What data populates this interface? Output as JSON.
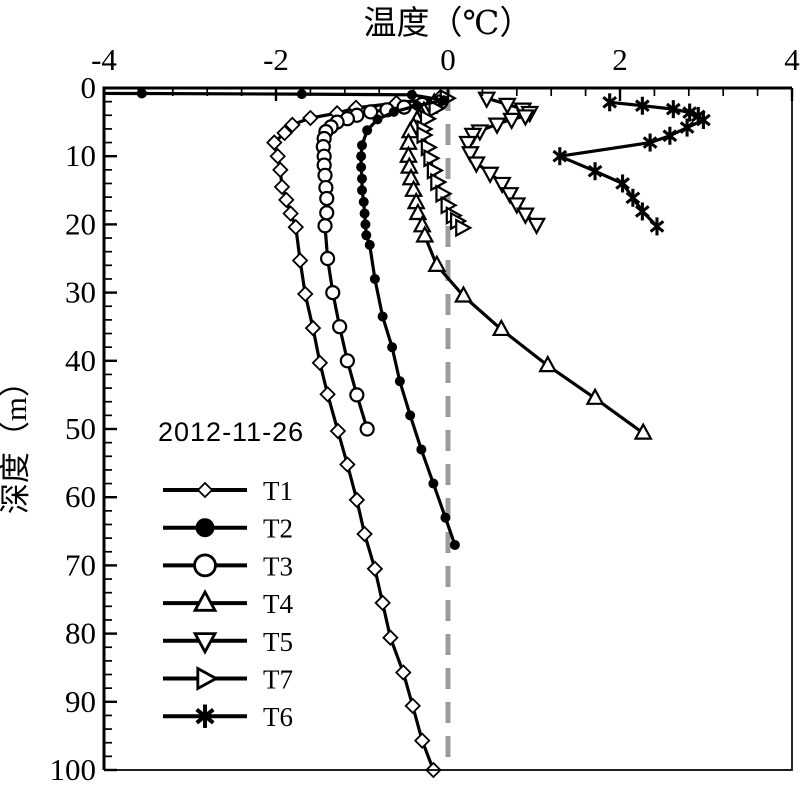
{
  "colors": {
    "line": "#000000",
    "marker_fill": "#ffffff",
    "zero_line": "#9c9c9c",
    "background": "#ffffff",
    "text": "#000000"
  },
  "chart_data": {
    "type": "line",
    "title": "温度（℃）",
    "xlabel": "温度（℃）",
    "ylabel": "深度（m）",
    "annotation": "2012-11-26",
    "x_axis": {
      "min": -4,
      "max": 4,
      "major_ticks": [
        -4,
        -2,
        0,
        2,
        4
      ],
      "minor_step": 0.4,
      "position": "top"
    },
    "y_axis": {
      "min": 0,
      "max": 100,
      "major_ticks": [
        0,
        10,
        20,
        30,
        40,
        50,
        60,
        70,
        80,
        90,
        100
      ],
      "minor_step": 2,
      "inverted": true,
      "position": "left"
    },
    "zero_reference_line": {
      "x": 0,
      "style": "dashed",
      "color": "#9c9c9c"
    },
    "grid": false,
    "legend_position": "inside-lower-left",
    "series": [
      {
        "name": "T1",
        "marker": "open-diamond",
        "points": [
          [
            -0.1,
            1.5
          ],
          [
            -0.6,
            2.2
          ],
          [
            -1.07,
            2.9
          ],
          [
            -1.29,
            3.7
          ],
          [
            -1.6,
            4.4
          ],
          [
            -1.81,
            5.4
          ],
          [
            -1.9,
            6.6
          ],
          [
            -2.02,
            8.0
          ],
          [
            -1.98,
            10.0
          ],
          [
            -1.95,
            12.0
          ],
          [
            -1.93,
            14.5
          ],
          [
            -1.88,
            16.4
          ],
          [
            -1.83,
            18.4
          ],
          [
            -1.77,
            20.4
          ],
          [
            -1.72,
            25.3
          ],
          [
            -1.66,
            30.2
          ],
          [
            -1.57,
            35.2
          ],
          [
            -1.49,
            40.3
          ],
          [
            -1.4,
            44.9
          ],
          [
            -1.28,
            50.3
          ],
          [
            -1.17,
            55.2
          ],
          [
            -1.06,
            60.4
          ],
          [
            -0.97,
            65.4
          ],
          [
            -0.85,
            70.5
          ],
          [
            -0.76,
            75.5
          ],
          [
            -0.67,
            80.6
          ],
          [
            -0.52,
            85.7
          ],
          [
            -0.41,
            90.6
          ],
          [
            -0.3,
            95.7
          ],
          [
            -0.17,
            100.0
          ]
        ]
      },
      {
        "name": "T2",
        "marker": "filled-circle",
        "lead_in": [
          -4.0,
          0.8
        ],
        "points": [
          [
            -3.56,
            0.8
          ],
          [
            -1.7,
            0.9
          ],
          [
            -0.42,
            1.0
          ],
          [
            -0.05,
            1.8
          ],
          [
            -0.36,
            2.6
          ],
          [
            -0.63,
            3.5
          ],
          [
            -0.82,
            4.6
          ],
          [
            -0.94,
            6.2
          ],
          [
            -1.0,
            8.4
          ],
          [
            -1.01,
            10.0
          ],
          [
            -1.01,
            11.6
          ],
          [
            -1.0,
            13.3
          ],
          [
            -1.0,
            15.0
          ],
          [
            -0.98,
            16.7
          ],
          [
            -0.97,
            18.4
          ],
          [
            -0.96,
            20.0
          ],
          [
            -0.95,
            21.6
          ],
          [
            -0.91,
            23.0
          ],
          [
            -0.85,
            28.0
          ],
          [
            -0.76,
            33.5
          ],
          [
            -0.65,
            38.0
          ],
          [
            -0.56,
            43.0
          ],
          [
            -0.44,
            48.0
          ],
          [
            -0.31,
            53.0
          ],
          [
            -0.17,
            58.0
          ],
          [
            -0.03,
            63.0
          ],
          [
            0.08,
            67.0
          ]
        ]
      },
      {
        "name": "T3",
        "marker": "open-circle",
        "points": [
          [
            -0.08,
            2.0
          ],
          [
            -0.3,
            2.4
          ],
          [
            -0.51,
            2.8
          ],
          [
            -0.71,
            3.2
          ],
          [
            -0.9,
            3.5
          ],
          [
            -1.06,
            4.0
          ],
          [
            -1.17,
            4.5
          ],
          [
            -1.29,
            5.0
          ],
          [
            -1.36,
            5.7
          ],
          [
            -1.42,
            6.4
          ],
          [
            -1.44,
            7.4
          ],
          [
            -1.45,
            8.6
          ],
          [
            -1.44,
            10.0
          ],
          [
            -1.44,
            11.3
          ],
          [
            -1.43,
            12.8
          ],
          [
            -1.42,
            14.6
          ],
          [
            -1.41,
            16.2
          ],
          [
            -1.41,
            18.3
          ],
          [
            -1.43,
            20.2
          ],
          [
            -1.4,
            25.0
          ],
          [
            -1.34,
            30.0
          ],
          [
            -1.26,
            35.0
          ],
          [
            -1.17,
            40.0
          ],
          [
            -1.06,
            45.0
          ],
          [
            -0.94,
            50.0
          ]
        ]
      },
      {
        "name": "T4",
        "marker": "open-triangle-up",
        "points": [
          [
            -0.16,
            2.2
          ],
          [
            -0.22,
            2.8
          ],
          [
            -0.28,
            3.4
          ],
          [
            -0.31,
            4.0
          ],
          [
            -0.36,
            4.7
          ],
          [
            -0.4,
            5.7
          ],
          [
            -0.44,
            6.4
          ],
          [
            -0.46,
            8.1
          ],
          [
            -0.46,
            10.0
          ],
          [
            -0.45,
            11.6
          ],
          [
            -0.43,
            13.3
          ],
          [
            -0.4,
            15.0
          ],
          [
            -0.37,
            16.8
          ],
          [
            -0.35,
            18.4
          ],
          [
            -0.3,
            20.2
          ],
          [
            -0.27,
            21.7
          ],
          [
            -0.13,
            26.0
          ],
          [
            0.18,
            30.5
          ],
          [
            0.62,
            35.4
          ],
          [
            1.16,
            40.7
          ],
          [
            1.71,
            45.5
          ],
          [
            2.27,
            50.6
          ]
        ]
      },
      {
        "name": "T5",
        "marker": "open-triangle-down",
        "points": [
          [
            0.45,
            1.5
          ],
          [
            0.69,
            2.4
          ],
          [
            0.87,
            3.1
          ],
          [
            0.95,
            3.6
          ],
          [
            0.9,
            4.1
          ],
          [
            0.74,
            4.6
          ],
          [
            0.57,
            5.3
          ],
          [
            0.37,
            6.3
          ],
          [
            0.29,
            6.8
          ],
          [
            0.23,
            8.0
          ],
          [
            0.26,
            9.5
          ],
          [
            0.33,
            11.0
          ],
          [
            0.49,
            12.5
          ],
          [
            0.63,
            14.0
          ],
          [
            0.72,
            15.5
          ],
          [
            0.8,
            17.0
          ],
          [
            0.9,
            18.5
          ],
          [
            1.03,
            20.0
          ]
        ]
      },
      {
        "name": "T7",
        "marker": "open-triangle-right",
        "points": [
          [
            -0.02,
            1.5
          ],
          [
            -0.15,
            3.0
          ],
          [
            -0.25,
            4.5
          ],
          [
            -0.29,
            6.0
          ],
          [
            -0.29,
            6.9
          ],
          [
            -0.24,
            8.7
          ],
          [
            -0.21,
            10.3
          ],
          [
            -0.17,
            12.1
          ],
          [
            -0.13,
            13.8
          ],
          [
            -0.07,
            15.5
          ],
          [
            -0.01,
            17.2
          ],
          [
            0.05,
            18.7
          ],
          [
            0.1,
            19.5
          ],
          [
            0.16,
            20.5
          ]
        ]
      },
      {
        "name": "T6",
        "marker": "filled-star",
        "points": [
          [
            1.88,
            2.1
          ],
          [
            2.26,
            2.6
          ],
          [
            2.62,
            3.1
          ],
          [
            2.81,
            3.6
          ],
          [
            2.91,
            4.1
          ],
          [
            2.97,
            4.7
          ],
          [
            2.78,
            5.8
          ],
          [
            2.58,
            7.0
          ],
          [
            2.35,
            8.0
          ],
          [
            1.3,
            10.0
          ],
          [
            1.71,
            12.2
          ],
          [
            2.03,
            14.0
          ],
          [
            2.15,
            16.1
          ],
          [
            2.26,
            18.1
          ],
          [
            2.43,
            20.3
          ]
        ]
      }
    ]
  },
  "legend": {
    "date_label": "2012-11-26",
    "items": [
      {
        "label": "T1",
        "marker": "open-diamond"
      },
      {
        "label": "T2",
        "marker": "filled-circle"
      },
      {
        "label": "T3",
        "marker": "open-circle"
      },
      {
        "label": "T4",
        "marker": "open-triangle-up"
      },
      {
        "label": "T5",
        "marker": "open-triangle-down"
      },
      {
        "label": "T7",
        "marker": "open-triangle-right"
      },
      {
        "label": "T6",
        "marker": "filled-star"
      }
    ]
  }
}
